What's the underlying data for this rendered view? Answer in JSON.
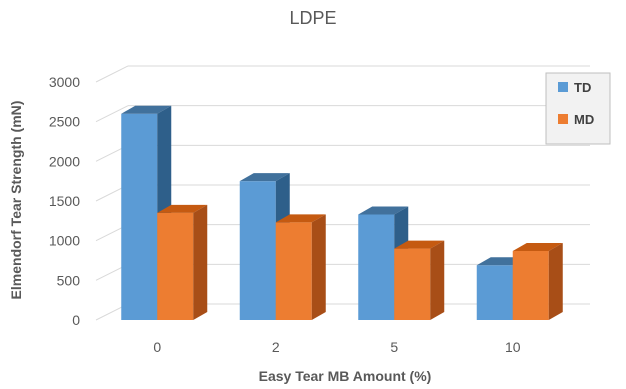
{
  "chart_data": {
    "type": "bar",
    "title": "LDPE",
    "xlabel": "Easy Tear MB Amount (%)",
    "ylabel": "Elmendorf Tear Strength (mN)",
    "categories": [
      "0",
      "2",
      "5",
      "10"
    ],
    "series": [
      {
        "name": "TD",
        "values": [
          2600,
          1750,
          1330,
          690
        ]
      },
      {
        "name": "MD",
        "values": [
          1350,
          1230,
          900,
          870
        ]
      }
    ],
    "ylim": [
      0,
      3000
    ],
    "yticks": [
      "0",
      "500",
      "1000",
      "1500",
      "2000",
      "2500",
      "3000"
    ],
    "grid": true,
    "legend": "top-right",
    "colors": {
      "TD": "#5b9bd5",
      "TD_side": "#2e5f8a",
      "TD_top": "#41719c",
      "MD": "#ed7d31",
      "MD_side": "#a84e17",
      "MD_top": "#c55a11",
      "grid": "#d9d9d9",
      "text": "#595959"
    }
  }
}
